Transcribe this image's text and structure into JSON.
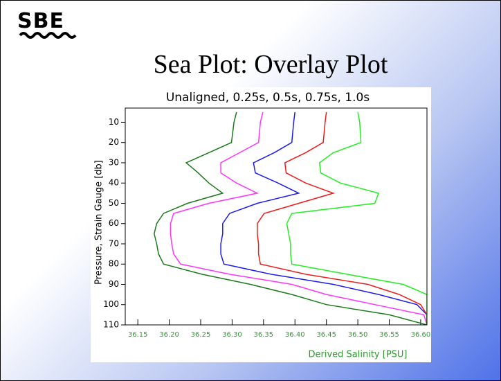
{
  "logo": "SBE",
  "title": "Sea Plot: Overlay Plot",
  "chart_data": {
    "type": "line",
    "title": "Unaligned, 0.25s, 0.5s, 0.75s, 1.0s",
    "xlabel": "Derived Salinity [PSU]",
    "ylabel": "Pressure, Strain Gauge [db]",
    "y": [
      5,
      10,
      20,
      25,
      30,
      35,
      40,
      45,
      50,
      55,
      60,
      65,
      70,
      75,
      80,
      85,
      90,
      95,
      100,
      105,
      110
    ],
    "series": [
      {
        "color": "#1a7a1a",
        "values": [
          36.307,
          36.303,
          36.299,
          36.263,
          36.227,
          36.246,
          36.263,
          36.285,
          36.229,
          36.191,
          36.18,
          36.176,
          36.18,
          36.183,
          36.191,
          36.252,
          36.329,
          36.395,
          36.45,
          36.55,
          36.61
        ]
      },
      {
        "color": "#ff33ff",
        "values": [
          36.349,
          36.345,
          36.342,
          36.312,
          36.282,
          36.282,
          36.307,
          36.34,
          36.263,
          36.207,
          36.202,
          36.202,
          36.204,
          36.207,
          36.218,
          36.296,
          36.395,
          36.45,
          36.527,
          36.605,
          36.61
        ]
      },
      {
        "color": "#1a1aee",
        "values": [
          36.4,
          36.398,
          36.395,
          36.367,
          36.334,
          36.337,
          36.373,
          36.406,
          36.34,
          36.296,
          36.285,
          36.285,
          36.282,
          36.282,
          36.287,
          36.362,
          36.461,
          36.533,
          36.594,
          36.61,
          36.61
        ]
      },
      {
        "color": "#ee1a1a",
        "values": [
          36.45,
          36.448,
          36.445,
          36.417,
          36.384,
          36.386,
          36.417,
          36.461,
          36.406,
          36.351,
          36.34,
          36.34,
          36.342,
          36.342,
          36.345,
          36.417,
          36.516,
          36.566,
          36.6,
          36.61,
          36.61
        ]
      },
      {
        "color": "#22ee22",
        "values": [
          36.5,
          36.503,
          36.505,
          36.461,
          36.439,
          36.441,
          36.472,
          36.533,
          36.527,
          36.395,
          36.387,
          36.39,
          36.393,
          36.393,
          36.395,
          36.483,
          36.572,
          36.61,
          36.61,
          36.61,
          36.61
        ]
      }
    ],
    "xlim": [
      36.13,
      36.61
    ],
    "xticks": [
      {
        "value": 36.15,
        "label": "36.15"
      },
      {
        "value": 36.2,
        "label": "36.20"
      },
      {
        "value": 36.25,
        "label": "36.25"
      },
      {
        "value": 36.3,
        "label": "36.30"
      },
      {
        "value": 36.35,
        "label": "36.35"
      },
      {
        "value": 36.4,
        "label": "36.40"
      },
      {
        "value": 36.45,
        "label": "36.45"
      },
      {
        "value": 36.5,
        "label": "36.50"
      },
      {
        "value": 36.55,
        "label": "36.55"
      },
      {
        "value": 36.6,
        "label": "36.60"
      }
    ],
    "ylim": [
      3,
      110
    ],
    "yticks": [
      10,
      20,
      30,
      40,
      50,
      60,
      70,
      80,
      90,
      100,
      110
    ],
    "y_inverted": true,
    "xtick_color": "#2e9a2e"
  }
}
